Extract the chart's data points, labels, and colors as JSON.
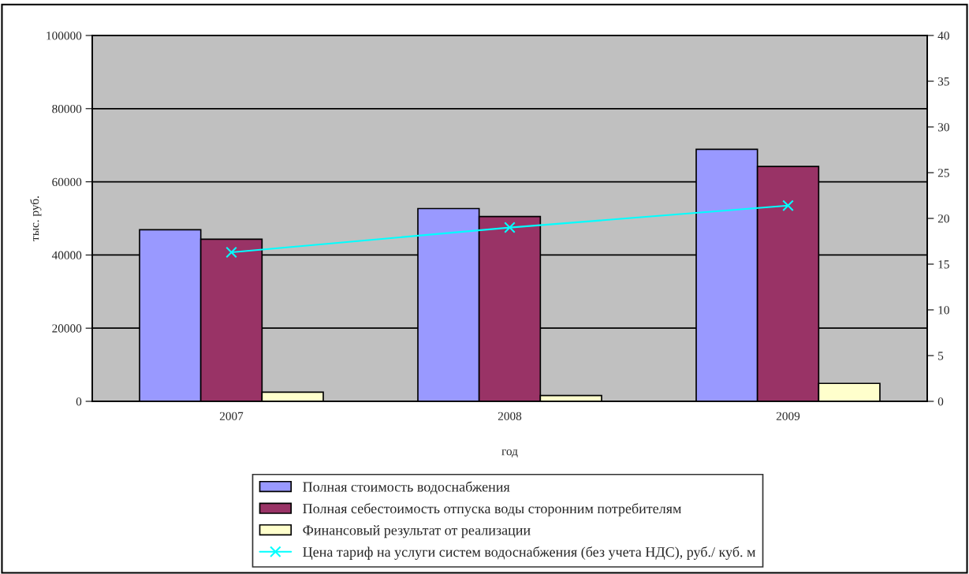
{
  "chart_data": {
    "type": "bar",
    "xlabel": "год",
    "ylabel": "тыс. руб.",
    "categories": [
      "2007",
      "2008",
      "2009"
    ],
    "series": [
      {
        "name": "Полная стоимость водоснабжения",
        "color": "#9999ff",
        "values": [
          46900,
          52700,
          68900
        ]
      },
      {
        "name": "Полная себестоимость отпуска воды сторонним потребителям",
        "color": "#993366",
        "values": [
          44300,
          50500,
          64200
        ]
      },
      {
        "name": "Финансовый результат от реализации",
        "color": "#ffffcc",
        "values": [
          2500,
          1600,
          4900
        ]
      },
      {
        "name": "Цена тариф на услуги систем водоснабжения (без учета НДС), руб./ куб. м",
        "type": "line",
        "axis": "y2",
        "color": "#00ffff",
        "values": [
          16.3,
          19.0,
          21.4
        ]
      }
    ],
    "ylim": [
      0,
      100000
    ],
    "yticks": [
      0,
      20000,
      40000,
      60000,
      80000,
      100000
    ],
    "y2lim": [
      0,
      40
    ],
    "y2ticks": [
      0,
      5,
      10,
      15,
      20,
      25,
      30,
      35,
      40
    ],
    "grid": "y",
    "legend": "bottom",
    "marker": "cross",
    "line_style": "solid"
  }
}
